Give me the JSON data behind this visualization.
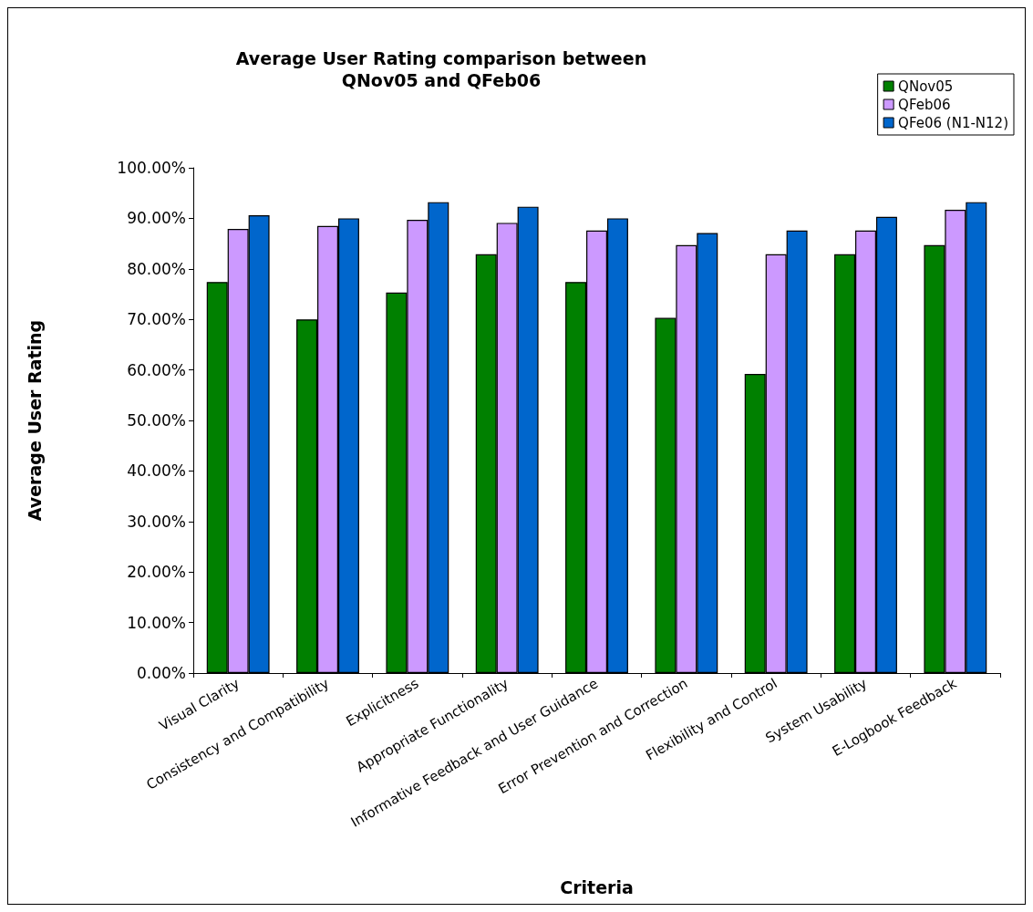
{
  "chart_data": {
    "type": "bar",
    "title": "Average User Rating comparison between\nQNov05 and QFeb06",
    "xlabel": "Criteria",
    "ylabel": "Average User Rating",
    "categories": [
      "Visual Clarity",
      "Consistency and Compatibility",
      "Explicitness",
      "Appropriate Functionality",
      "Informative Feedback and User Guidance",
      "Error Prevention and Correction",
      "Flexibility and Control",
      "System Usability",
      "E-Logbook Feedback"
    ],
    "series": [
      {
        "name": "QNov05",
        "color": "#008000",
        "values": [
          77.4,
          70.0,
          75.3,
          82.9,
          77.4,
          70.3,
          59.2,
          82.9,
          84.7
        ]
      },
      {
        "name": "QFeb06",
        "color": "#cc99ff",
        "values": [
          87.9,
          88.5,
          89.7,
          89.1,
          87.6,
          84.7,
          82.9,
          87.6,
          91.7
        ]
      },
      {
        "name": "QFe06 (N1-N12)",
        "color": "#0066cc",
        "values": [
          90.6,
          90.0,
          93.2,
          92.3,
          90.0,
          87.1,
          87.6,
          90.3,
          93.2
        ]
      }
    ],
    "ylim": [
      0,
      100
    ],
    "yticks": [
      {
        "value": 0,
        "label": "0.00%"
      },
      {
        "value": 10,
        "label": "10.00%"
      },
      {
        "value": 20,
        "label": "20.00%"
      },
      {
        "value": 30,
        "label": "30.00%"
      },
      {
        "value": 40,
        "label": "40.00%"
      },
      {
        "value": 50,
        "label": "50.00%"
      },
      {
        "value": 60,
        "label": "60.00%"
      },
      {
        "value": 70,
        "label": "70.00%"
      },
      {
        "value": 80,
        "label": "80.00%"
      },
      {
        "value": 90,
        "label": "90.00%"
      },
      {
        "value": 100,
        "label": "100.00%"
      }
    ],
    "grid": false,
    "legend": "top right"
  }
}
